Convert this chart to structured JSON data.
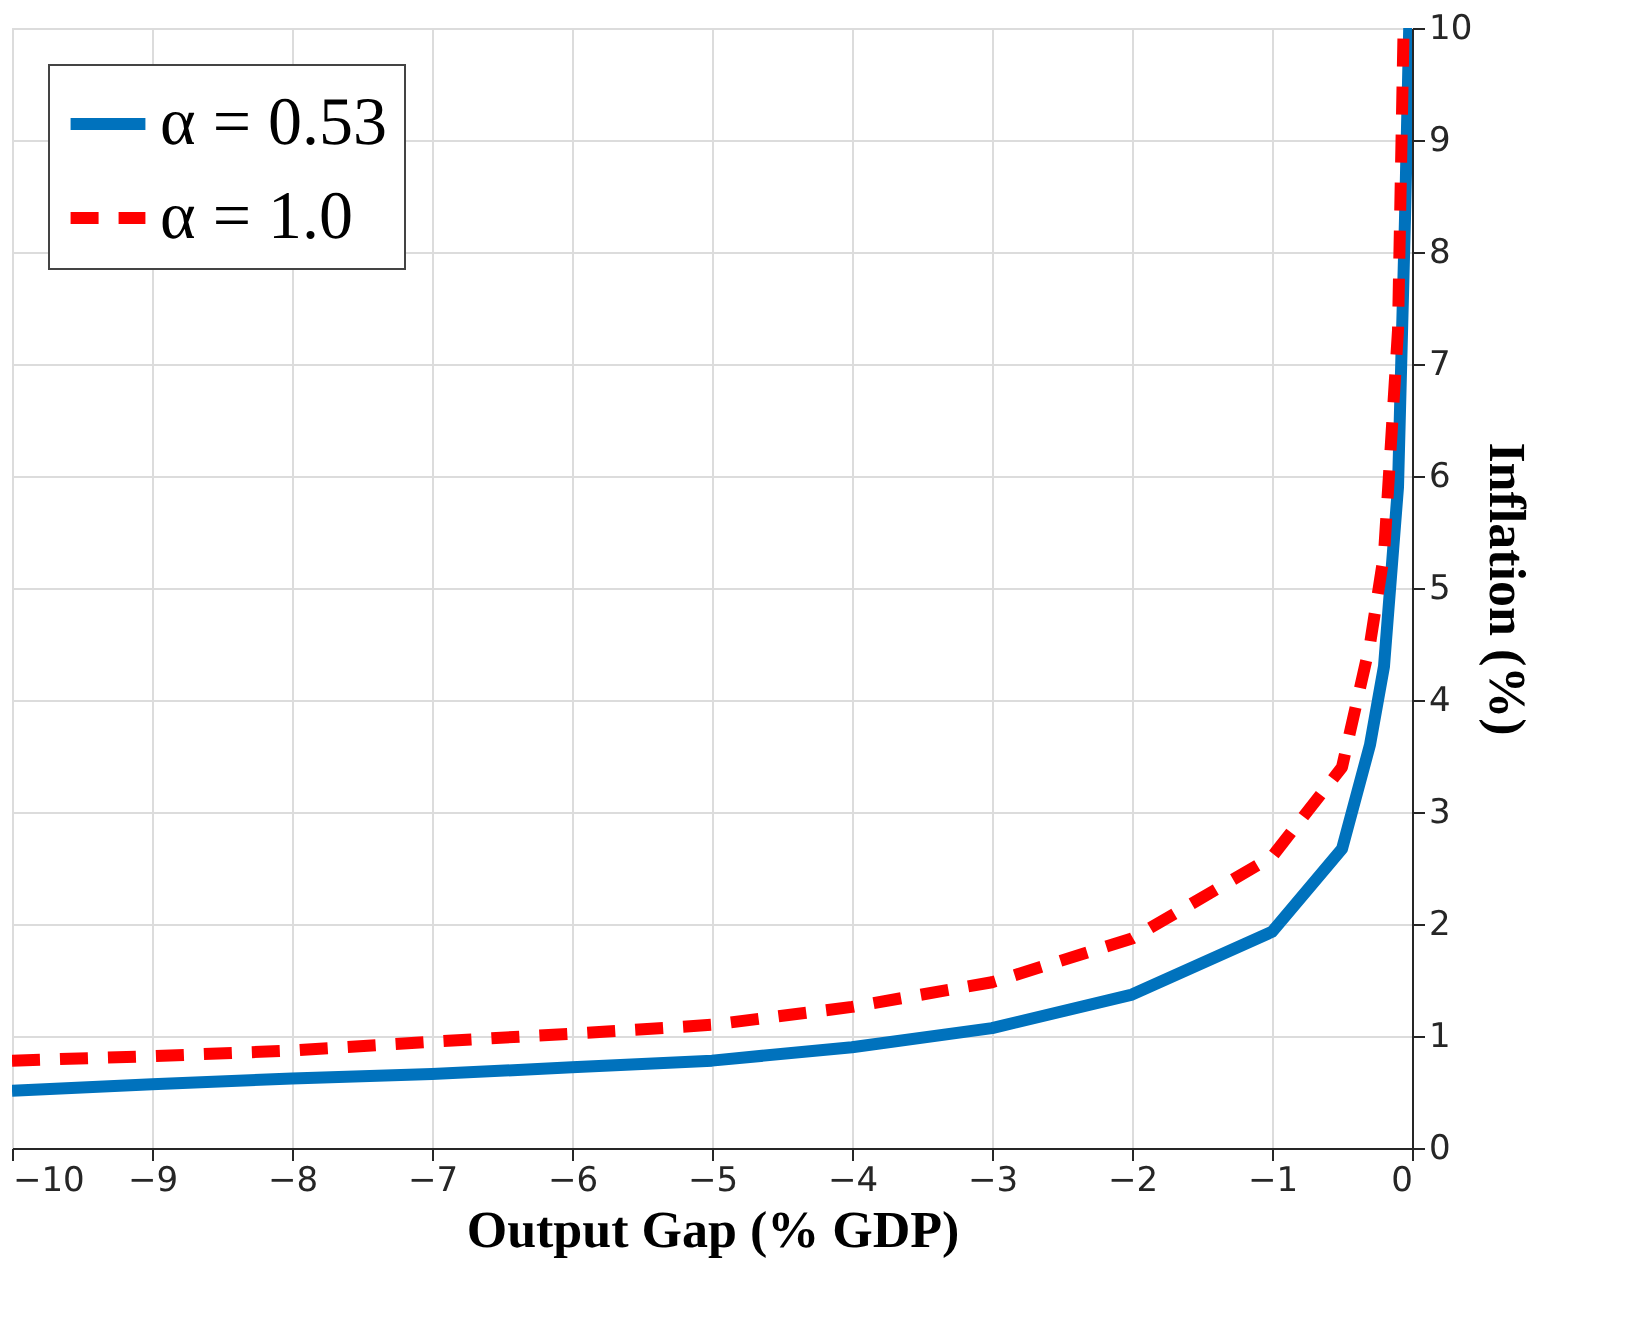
{
  "chart_data": {
    "type": "line",
    "xlabel": "Output Gap (% GDP)",
    "ylabel": "Inflation (%)",
    "xlim": [
      -10,
      0
    ],
    "xticks": [
      -10,
      -9,
      -8,
      -7,
      -6,
      -5,
      -4,
      -3,
      -2,
      -1,
      0
    ],
    "ylim": [
      0,
      10
    ],
    "yticks": [
      0,
      1,
      2,
      3,
      4,
      5,
      6,
      7,
      8,
      9,
      10
    ],
    "grid": true,
    "legend": "top left",
    "series": [
      {
        "name": "α = 0.53",
        "color": "#0072bd",
        "line_style": "solid",
        "x": [
          -10,
          -9,
          -8,
          -7,
          -6,
          -5,
          -4,
          -3,
          -2,
          -1,
          -0.5,
          -0.3,
          -0.2,
          -0.1,
          -0.05,
          -0.02
        ],
        "values": [
          0.51,
          0.57,
          0.62,
          0.66,
          0.72,
          0.78,
          0.9,
          1.07,
          1.37,
          1.93,
          2.67,
          3.6,
          4.3,
          5.9,
          8.3,
          10
        ]
      },
      {
        "name": "α = 1.0",
        "color": "#ff0000",
        "line_style": "dashed",
        "x": [
          -10,
          -9,
          -8,
          -7,
          -6,
          -5,
          -4,
          -3,
          -2,
          -1,
          -0.5,
          -0.3,
          -0.2,
          -0.1,
          -0.06
        ],
        "values": [
          0.78,
          0.82,
          0.87,
          0.95,
          1.02,
          1.1,
          1.26,
          1.48,
          1.87,
          2.6,
          3.4,
          4.5,
          5.3,
          7.3,
          10
        ]
      }
    ]
  }
}
